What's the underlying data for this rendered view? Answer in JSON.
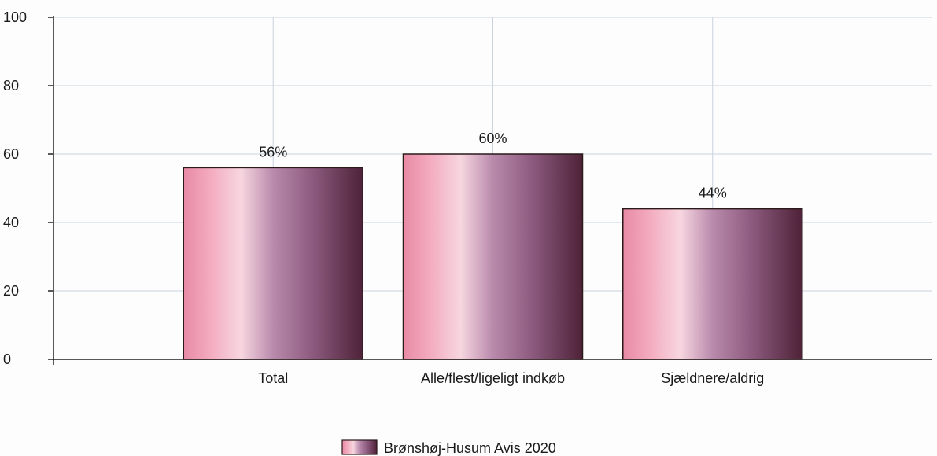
{
  "chart_data": {
    "type": "bar",
    "categories": [
      "Total",
      "Alle/flest/ligeligt indkøb",
      "Sjældnere/aldrig"
    ],
    "series": [
      {
        "name": "Brønshøj-Husum Avis 2020",
        "values": [
          56,
          60,
          44
        ],
        "data_labels": [
          "56%",
          "60%",
          "44%"
        ]
      }
    ],
    "title": "",
    "xlabel": "",
    "ylabel": "",
    "ylim": [
      0,
      100
    ],
    "yticks": [
      0,
      20,
      40,
      60,
      80,
      100
    ],
    "grid": true,
    "legend_position": "bottom",
    "colors": {
      "bar_light": "#f2c4d2",
      "bar_pink": "#e07a97",
      "bar_mauve": "#a06c94",
      "bar_dark": "#5a2a45",
      "bar_edge": "#2a1a1a",
      "grid": "#c8d4e0",
      "axis": "#222222"
    }
  }
}
